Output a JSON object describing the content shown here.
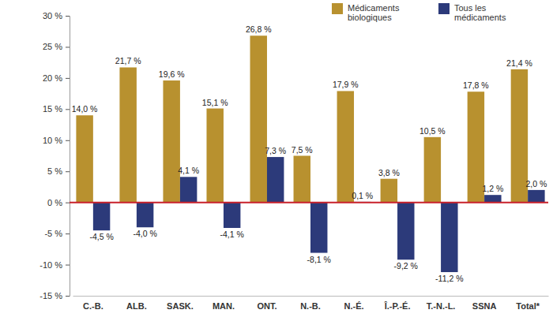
{
  "chart_data": {
    "type": "bar",
    "categories": [
      "C.-B.",
      "ALB.",
      "SASK.",
      "MAN.",
      "ONT.",
      "N.-B.",
      "N.-É.",
      "Î.-P.-É.",
      "T.-N.-L.",
      "SSNA",
      "Total*"
    ],
    "series": [
      {
        "name": "Médicaments biologiques",
        "color": "#B8912F",
        "values": [
          14.0,
          21.7,
          19.6,
          15.1,
          26.8,
          7.5,
          17.9,
          3.8,
          10.5,
          17.8,
          21.4
        ],
        "value_labels": [
          "14,0 %",
          "21,7 %",
          "19,6 %",
          "15,1 %",
          "26,8 %",
          "7,5 %",
          "17,9 %",
          "3,8 %",
          "10,5 %",
          "17,8 %",
          "21,4 %"
        ]
      },
      {
        "name": "Tous les médicaments",
        "color": "#2C3A7A",
        "values": [
          -4.5,
          -4.0,
          4.1,
          -4.1,
          7.3,
          -8.1,
          0.1,
          -9.2,
          -11.2,
          1.2,
          2.0
        ],
        "value_labels": [
          "-4,5 %",
          "-4,0 %",
          "4,1 %",
          "-4,1 %",
          "7,3 %",
          "-8,1 %",
          "0,1 %",
          "-9,2 %",
          "-11,2 %",
          "1,2 %",
          "2,0 %"
        ]
      }
    ],
    "ylim": [
      -15,
      30
    ],
    "yticks": [
      {
        "value": -15,
        "label": "-15 %"
      },
      {
        "value": -10,
        "label": "-10 %"
      },
      {
        "value": -5,
        "label": "-5 %"
      },
      {
        "value": 0,
        "label": "0 %"
      },
      {
        "value": 5,
        "label": "5 %"
      },
      {
        "value": 10,
        "label": "10 %"
      },
      {
        "value": 15,
        "label": "15 %"
      },
      {
        "value": 20,
        "label": "20 %"
      },
      {
        "value": 25,
        "label": "25 %"
      },
      {
        "value": 30,
        "label": "30 %"
      }
    ],
    "grid": false,
    "legend": "top-right",
    "data_labels": true
  }
}
